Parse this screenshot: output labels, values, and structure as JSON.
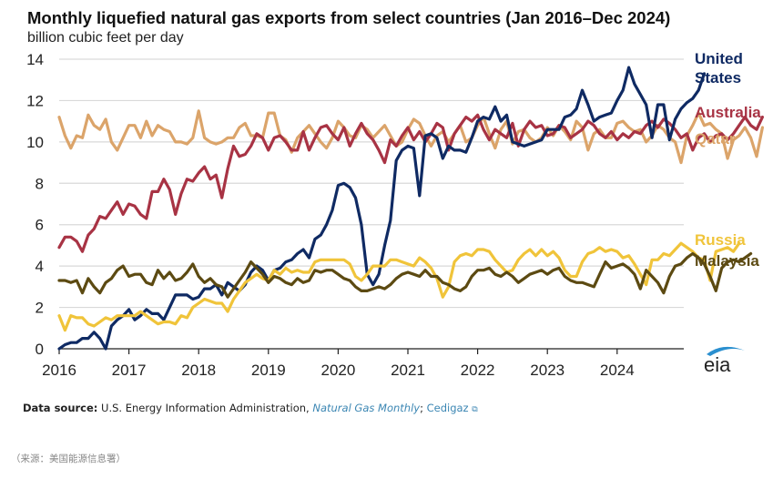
{
  "chart_data": {
    "type": "line",
    "title": "Monthly liquefied natural gas exports from select countries (Jan 2016–Dec 2024)",
    "ylabel": "billion cubic feet per day",
    "xlabel": "",
    "ylim": [
      0,
      14
    ],
    "xlim": [
      2016,
      2025
    ],
    "yticks": [
      "0",
      "2",
      "4",
      "6",
      "8",
      "10",
      "12",
      "14"
    ],
    "xticks": [
      "2016",
      "2017",
      "2018",
      "2019",
      "2020",
      "2021",
      "2022",
      "2023",
      "2024"
    ],
    "grid": true,
    "legend_placement": "right (direct labels)",
    "series": [
      {
        "name": "Qatar",
        "label": "Qatar",
        "color": "#dba46a",
        "values": [
          11.2,
          10.3,
          9.7,
          10.3,
          10.2,
          11.3,
          10.8,
          10.6,
          11.1,
          10.0,
          9.6,
          10.2,
          10.8,
          10.8,
          10.2,
          11.0,
          10.3,
          10.8,
          10.6,
          10.5,
          10.0,
          10.0,
          9.9,
          10.2,
          11.5,
          10.2,
          10.0,
          9.9,
          10.0,
          10.2,
          10.2,
          10.7,
          10.9,
          10.3,
          10.3,
          10.2,
          11.4,
          11.4,
          10.3,
          10.1,
          9.5,
          10.2,
          10.5,
          10.8,
          10.4,
          10.0,
          9.7,
          10.2,
          11.0,
          10.7,
          10.3,
          10.2,
          10.8,
          10.6,
          10.2,
          10.5,
          10.8,
          10.3,
          9.8,
          10.0,
          10.6,
          11.1,
          10.9,
          10.3,
          9.8,
          10.3,
          10.5,
          10.0,
          10.4,
          10.8,
          10.0,
          10.2,
          10.8,
          11.2,
          10.4,
          9.7,
          10.6,
          11.0,
          9.9,
          10.5,
          10.6,
          10.2,
          10.0,
          10.2,
          10.7,
          10.3,
          10.8,
          10.5,
          10.1,
          11.0,
          10.7,
          9.6,
          10.4,
          10.6,
          10.2,
          10.2,
          10.9,
          11.0,
          10.7,
          10.5,
          10.6,
          10.0,
          10.3,
          10.8,
          10.6,
          10.2,
          10.0,
          9.0,
          10.3,
          10.8,
          11.4,
          10.8,
          10.9,
          10.6,
          10.4,
          9.2,
          10.1,
          10.3,
          10.7,
          10.2,
          9.3,
          10.7
        ]
      },
      {
        "name": "Australia",
        "label": "Australia",
        "color": "#a83344",
        "values": [
          4.9,
          5.4,
          5.4,
          5.2,
          4.7,
          5.5,
          5.8,
          6.4,
          6.3,
          6.7,
          7.1,
          6.5,
          7.0,
          6.9,
          6.5,
          6.3,
          7.6,
          7.6,
          8.2,
          7.7,
          6.5,
          7.5,
          8.2,
          8.1,
          8.5,
          8.8,
          8.2,
          8.4,
          7.3,
          8.7,
          9.8,
          9.3,
          9.4,
          9.8,
          10.4,
          10.2,
          9.6,
          10.2,
          10.3,
          10.0,
          9.6,
          9.6,
          10.5,
          9.6,
          10.2,
          10.7,
          10.8,
          10.4,
          10.1,
          10.7,
          9.8,
          10.4,
          10.9,
          10.4,
          10.1,
          9.6,
          9.0,
          10.1,
          9.8,
          10.3,
          10.7,
          10.1,
          10.5,
          10.0,
          10.4,
          10.9,
          10.7,
          9.6,
          10.4,
          10.8,
          11.2,
          11.0,
          11.3,
          10.6,
          10.1,
          10.6,
          10.4,
          10.2,
          10.9,
          9.8,
          10.6,
          11.0,
          10.7,
          10.8,
          10.3,
          10.4,
          10.8,
          10.7,
          10.2,
          10.4,
          10.6,
          11.0,
          10.8,
          10.4,
          10.2,
          10.5,
          10.1,
          10.4,
          10.2,
          10.5,
          10.4,
          10.8,
          11.0,
          10.7,
          11.1,
          10.9,
          10.6,
          10.2,
          10.4,
          9.6,
          10.2,
          10.4,
          10.0,
          10.3,
          10.4,
          10.1,
          10.4,
          10.8,
          11.2,
          10.8,
          10.6,
          11.2
        ]
      },
      {
        "name": "United States",
        "label": "United States",
        "color": "#0f2a63",
        "values": [
          0.0,
          0.2,
          0.3,
          0.3,
          0.5,
          0.5,
          0.8,
          0.5,
          0.0,
          1.1,
          1.4,
          1.6,
          1.9,
          1.4,
          1.6,
          1.9,
          1.7,
          1.7,
          1.4,
          2.0,
          2.6,
          2.6,
          2.6,
          2.4,
          2.5,
          2.9,
          2.9,
          3.1,
          2.6,
          3.2,
          3.0,
          2.8,
          3.1,
          3.7,
          4.0,
          3.8,
          3.3,
          3.8,
          3.9,
          4.2,
          4.3,
          4.6,
          4.8,
          4.4,
          5.3,
          5.5,
          6.0,
          6.7,
          7.9,
          8.0,
          7.8,
          7.3,
          6.0,
          3.6,
          3.1,
          3.6,
          5.0,
          6.2,
          9.1,
          9.6,
          9.8,
          9.7,
          7.4,
          10.3,
          10.4,
          10.2,
          9.2,
          9.8,
          9.6,
          9.6,
          9.5,
          10.2,
          11.0,
          11.2,
          11.1,
          11.7,
          11.0,
          11.3,
          10.0,
          9.9,
          9.8,
          9.9,
          10.0,
          10.1,
          10.6,
          10.6,
          10.6,
          11.2,
          11.3,
          11.6,
          12.5,
          11.8,
          11.0,
          11.2,
          11.3,
          11.4,
          12.0,
          12.5,
          13.6,
          12.8,
          12.3,
          11.8,
          10.2,
          11.8,
          11.8,
          10.1,
          11.1,
          11.6,
          11.9,
          12.1,
          12.5,
          13.3
        ]
      },
      {
        "name": "Russia",
        "label": "Russia",
        "color": "#f0c43a",
        "values": [
          1.6,
          0.9,
          1.6,
          1.5,
          1.5,
          1.2,
          1.1,
          1.3,
          1.5,
          1.4,
          1.6,
          1.6,
          1.6,
          1.6,
          1.8,
          1.6,
          1.4,
          1.2,
          1.3,
          1.3,
          1.2,
          1.6,
          1.5,
          2.0,
          2.2,
          2.4,
          2.3,
          2.2,
          2.2,
          1.8,
          2.4,
          2.8,
          3.2,
          3.4,
          3.6,
          3.4,
          3.3,
          3.8,
          3.6,
          3.9,
          3.7,
          3.8,
          3.7,
          3.7,
          4.2,
          4.3,
          4.3,
          4.3,
          4.3,
          4.3,
          4.1,
          3.5,
          3.3,
          3.6,
          4.0,
          4.0,
          4.0,
          4.3,
          4.3,
          4.2,
          4.1,
          4.0,
          4.4,
          4.2,
          3.9,
          3.4,
          2.5,
          3.0,
          4.2,
          4.5,
          4.6,
          4.5,
          4.8,
          4.8,
          4.7,
          4.3,
          4.0,
          3.7,
          3.8,
          4.3,
          4.6,
          4.8,
          4.5,
          4.8,
          4.5,
          4.7,
          4.4,
          3.8,
          3.5,
          3.5,
          4.2,
          4.6,
          4.7,
          4.9,
          4.7,
          4.8,
          4.7,
          4.4,
          4.5,
          4.1,
          3.6,
          3.1,
          4.3,
          4.3,
          4.6,
          4.5,
          4.8,
          5.1,
          4.9,
          4.7,
          4.4,
          4.3,
          3.3,
          4.7,
          4.8,
          4.9,
          4.7,
          5.1
        ]
      },
      {
        "name": "Malaysia",
        "label": "Malaysia",
        "color": "#5c4a12",
        "values": [
          3.3,
          3.3,
          3.2,
          3.3,
          2.7,
          3.4,
          3.0,
          2.7,
          3.2,
          3.4,
          3.8,
          4.0,
          3.5,
          3.6,
          3.6,
          3.2,
          3.1,
          3.8,
          3.4,
          3.7,
          3.3,
          3.4,
          3.7,
          4.1,
          3.5,
          3.2,
          3.4,
          3.1,
          3.0,
          2.5,
          2.9,
          3.3,
          3.7,
          4.2,
          3.9,
          3.6,
          3.2,
          3.5,
          3.4,
          3.2,
          3.1,
          3.4,
          3.2,
          3.3,
          3.8,
          3.7,
          3.8,
          3.8,
          3.6,
          3.4,
          3.3,
          3.0,
          2.8,
          2.8,
          2.9,
          3.0,
          2.9,
          3.1,
          3.4,
          3.6,
          3.7,
          3.6,
          3.5,
          3.8,
          3.5,
          3.5,
          3.2,
          3.1,
          2.9,
          2.8,
          3.0,
          3.5,
          3.8,
          3.8,
          3.9,
          3.6,
          3.5,
          3.7,
          3.5,
          3.2,
          3.4,
          3.6,
          3.7,
          3.8,
          3.6,
          3.8,
          3.9,
          3.5,
          3.3,
          3.2,
          3.2,
          3.1,
          3.0,
          3.6,
          4.2,
          3.9,
          4.0,
          4.1,
          3.9,
          3.6,
          2.9,
          3.8,
          3.5,
          3.2,
          2.7,
          3.5,
          4.0,
          4.1,
          4.4,
          4.6,
          4.4,
          4.1,
          3.5,
          2.8,
          3.9,
          4.2,
          4.3,
          4.2,
          4.4,
          4.6
        ]
      }
    ]
  },
  "header": {
    "title": "Monthly liquefied natural gas exports from select countries (Jan 2016–Dec 2024)",
    "subtitle": "billion cubic feet per day"
  },
  "legend": {
    "us_line1": "United",
    "us_line2": "States",
    "australia": "Australia",
    "qatar": "Qatar",
    "russia": "Russia",
    "malaysia": "Malaysia"
  },
  "source": {
    "label": "Data source:",
    "text": "U.S. Energy Information Administration,",
    "link1": "Natural Gas Monthly",
    "sep": ";",
    "link2": "Cedigaz",
    "ext_icon": "external-link-icon"
  },
  "logo": "eia",
  "footer": "（来源：美国能源信息署）"
}
